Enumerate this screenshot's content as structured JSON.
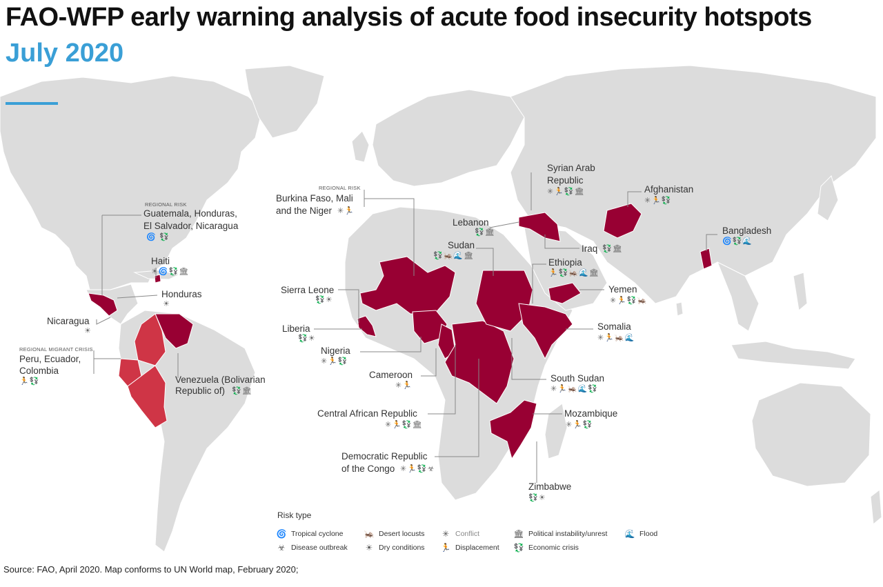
{
  "title": "FAO-WFP early warning analysis of acute food insecurity hotspots",
  "subtitle": "July 2020",
  "source": "Source: FAO, April 2020. Map conforms to UN World map, February 2020;",
  "colors": {
    "land": "#dcdcdc",
    "hotspot": "#980033",
    "regional_crisis": "#cf3546",
    "water": "#ffffff",
    "accent": "#3a9fd6"
  },
  "labels": {
    "guatemala_tag": "REGIONAL RISK",
    "guatemala_l1": "Guatemala, Honduras,",
    "guatemala_l2": "El Salvador, Nicaragua",
    "haiti": "Haiti",
    "honduras": "Honduras",
    "nicaragua": "Nicaragua",
    "peru_tag": "REGIONAL MIGRANT CRISIS",
    "peru_l1": "Peru, Ecuador,",
    "peru_l2": "Colombia",
    "venezuela_l1": "Venezuela (Bolivarian",
    "venezuela_l2": "Republic of)",
    "burkina_tag": "REGIONAL RISK",
    "burkina_l1": "Burkina Faso, Mali",
    "burkina_l2": "and the Niger",
    "sierra_leone": "Sierra Leone",
    "liberia": "Liberia",
    "nigeria": "Nigeria",
    "cameroon": "Cameroon",
    "car": "Central African Republic",
    "drc_l1": "Democratic Republic",
    "drc_l2": "of the Congo",
    "lebanon": "Lebanon",
    "sudan": "Sudan",
    "syria_l1": "Syrian Arab",
    "syria_l2": "Republic",
    "iraq": "Iraq",
    "ethiopia": "Ethiopia",
    "yemen": "Yemen",
    "somalia": "Somalia",
    "south_sudan": "South Sudan",
    "mozambique": "Mozambique",
    "zimbabwe": "Zimbabwe",
    "afghanistan": "Afghanistan",
    "bangladesh": "Bangladesh"
  },
  "legend": {
    "title": "Risk type",
    "items": [
      {
        "label": "Tropical cyclone",
        "icon": "cyclone-icon",
        "glyph": "🌀"
      },
      {
        "label": "Disease outbreak",
        "icon": "biohazard-icon",
        "glyph": "☣"
      },
      {
        "label": "Desert locusts",
        "icon": "locust-icon",
        "glyph": "🦗"
      },
      {
        "label": "Dry conditions",
        "icon": "sun-dry-icon",
        "glyph": "☀"
      },
      {
        "label": "Conflict",
        "icon": "conflict-icon",
        "glyph": "✳"
      },
      {
        "label": "Displacement",
        "icon": "displacement-icon",
        "glyph": "🏃"
      },
      {
        "label": "Political instability/unrest",
        "icon": "political-icon",
        "glyph": "🏛"
      },
      {
        "label": "Economic crisis",
        "icon": "economic-icon",
        "glyph": "💱"
      },
      {
        "label": "Flood",
        "icon": "flood-icon",
        "glyph": "🌊"
      }
    ]
  }
}
